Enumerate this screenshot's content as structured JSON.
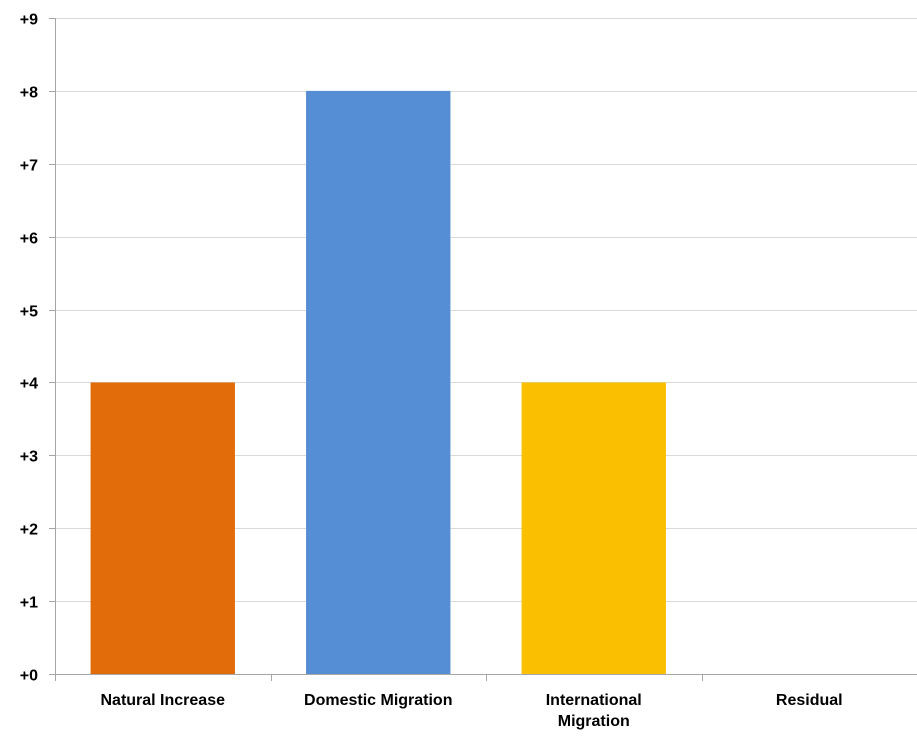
{
  "chart_data": {
    "type": "bar",
    "title": "",
    "xlabel": "",
    "ylabel": "",
    "categories": [
      "Natural Increase",
      "Domestic Migration",
      "International Migration",
      "Residual"
    ],
    "category_label_lines": [
      [
        "Natural Increase"
      ],
      [
        "Domestic Migration"
      ],
      [
        "International",
        "Migration"
      ],
      [
        "Residual"
      ]
    ],
    "values": [
      4,
      8,
      4,
      0
    ],
    "colors": [
      "#e36c0a",
      "#558ed5",
      "#fac000",
      "#a5a5a5"
    ],
    "ylim": [
      0,
      9
    ],
    "yticks": [
      0,
      1,
      2,
      3,
      4,
      5,
      6,
      7,
      8,
      9
    ],
    "ytick_labels": [
      "+0",
      "+1",
      "+2",
      "+3",
      "+4",
      "+5",
      "+6",
      "+7",
      "+8",
      "+9"
    ],
    "grid": true,
    "gridline_color": "#d9d9d9",
    "axis_color": "#a6a6a6"
  }
}
